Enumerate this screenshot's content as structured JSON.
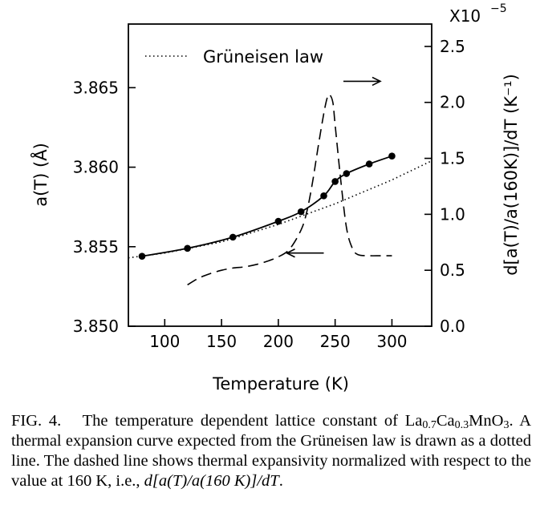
{
  "chart_data": {
    "type": "line",
    "xlabel": "Temperature (K)",
    "ylabel_left": "a(T) (Å)",
    "ylabel_right": "d[a(T)/a(160K)]/dT (K⁻¹)",
    "right_axis_multiplier": "X10",
    "right_axis_exponent": "−5",
    "xlim": [
      68,
      335
    ],
    "ylim_left": [
      3.85,
      3.869
    ],
    "ylim_right": [
      0.0,
      2.7
    ],
    "x_ticks": [
      100,
      150,
      200,
      250,
      300
    ],
    "y_left_ticks": [
      "3.850",
      "3.855",
      "3.860",
      "3.865"
    ],
    "y_right_ticks": [
      "0.0",
      "0.5",
      "1.0",
      "1.5",
      "2.0",
      "2.5"
    ],
    "legend": [
      {
        "label": "Grüneisen law",
        "style": "dotted"
      }
    ],
    "series": [
      {
        "name": "a(T)",
        "axis": "left",
        "style": "solid-markers",
        "x": [
          80,
          120,
          160,
          200,
          220,
          240,
          250,
          260,
          280,
          300
        ],
        "y": [
          3.8544,
          3.8549,
          3.8556,
          3.8566,
          3.8572,
          3.8582,
          3.8591,
          3.8596,
          3.8602,
          3.8607
        ]
      },
      {
        "name": "Grüneisen law",
        "axis": "left",
        "style": "dotted",
        "x": [
          68,
          100,
          150,
          200,
          250,
          300,
          335
        ],
        "y": [
          3.8543,
          3.8546,
          3.8553,
          3.8564,
          3.8577,
          3.8592,
          3.8604
        ]
      },
      {
        "axis": "right",
        "style": "dashed",
        "x": [
          120,
          130,
          140,
          150,
          160,
          170,
          180,
          190,
          200,
          210,
          220,
          225,
          230,
          235,
          240,
          243,
          245,
          248,
          250,
          255,
          260,
          265,
          270,
          280,
          290,
          300
        ],
        "y": [
          0.37,
          0.43,
          0.47,
          0.5,
          0.52,
          0.53,
          0.55,
          0.58,
          0.62,
          0.69,
          0.86,
          1.02,
          1.28,
          1.6,
          1.9,
          2.04,
          2.07,
          2.0,
          1.8,
          1.3,
          0.88,
          0.7,
          0.64,
          0.63,
          0.63,
          0.63
        ]
      }
    ],
    "arrows": [
      {
        "points_to": "left",
        "x": 240,
        "y_left": 3.8546
      },
      {
        "points_to": "right",
        "x": 270,
        "y_left": 3.8654
      }
    ]
  },
  "caption": {
    "fig": "FIG. 4.",
    "line1": "The temperature dependent lattice constant of",
    "chem_1": "La",
    "sub_1": "0.7",
    "chem_2": "Ca",
    "sub_2": "0.3",
    "chem_3": "MnO",
    "sub_3": "3",
    "rest": ". A thermal expansion curve expected from the Grüneisen law is drawn as a dotted line. The dashed line shows thermal expansivity normalized with respect to the value at 160 K, i.e., ",
    "formula": "d[a(T)/a(160 K)]/dT",
    "end": "."
  }
}
